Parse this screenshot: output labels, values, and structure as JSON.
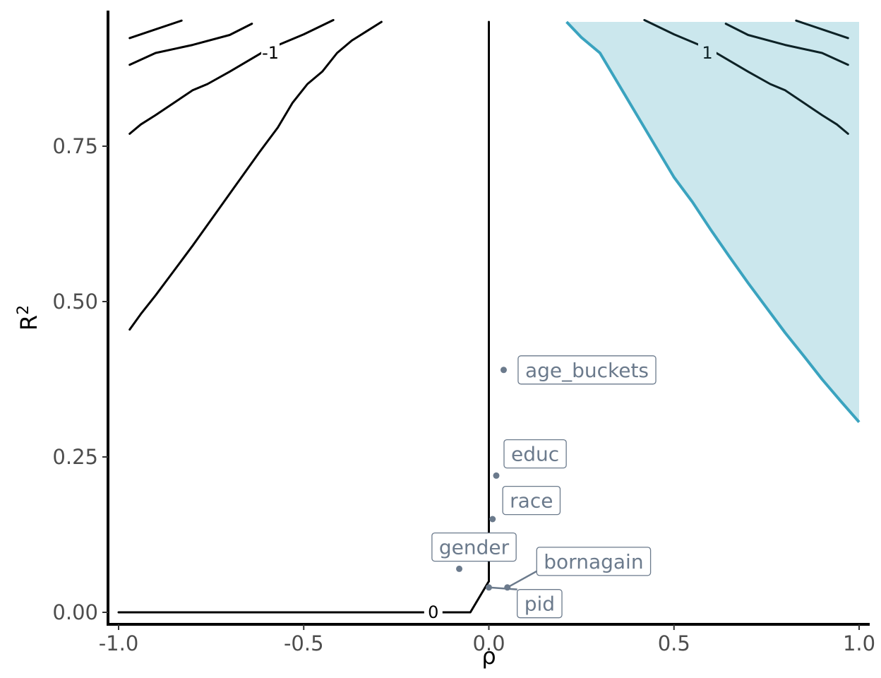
{
  "chart_data": {
    "type": "line",
    "title": "",
    "xlabel": "ρ",
    "ylabel": "R",
    "ylabel_sup": "2",
    "xlim": [
      -1.0,
      1.0
    ],
    "ylim": [
      0.0,
      0.95
    ],
    "x_ticks": [
      -1.0,
      -0.5,
      0.0,
      0.5,
      1.0
    ],
    "x_tick_labels": [
      "-1.0",
      "-0.5",
      "0.0",
      "0.5",
      "1.0"
    ],
    "y_ticks": [
      0.0,
      0.25,
      0.5,
      0.75
    ],
    "y_tick_labels": [
      "0.00",
      "0.25",
      "0.50",
      "0.75"
    ],
    "grid": false,
    "colors": {
      "contour": "#000000",
      "contour_in_region": "#0d2226",
      "region_fill": "#cbe7ed",
      "region_boundary": "#3aa3bf",
      "points": "#6b7a8c"
    },
    "shaded_region": {
      "name": "",
      "boundary": [
        [
          0.21,
          0.95
        ],
        [
          0.25,
          0.925
        ],
        [
          0.3,
          0.9
        ],
        [
          0.35,
          0.85
        ],
        [
          0.4,
          0.8
        ],
        [
          0.45,
          0.75
        ],
        [
          0.5,
          0.7
        ],
        [
          0.55,
          0.66
        ],
        [
          0.6,
          0.615
        ],
        [
          0.65,
          0.572
        ],
        [
          0.7,
          0.53
        ],
        [
          0.75,
          0.49
        ],
        [
          0.8,
          0.45
        ],
        [
          0.85,
          0.413
        ],
        [
          0.9,
          0.375
        ],
        [
          0.95,
          0.34
        ],
        [
          1.0,
          0.306
        ]
      ],
      "ceiling": 0.95
    },
    "contours": [
      {
        "label": "",
        "points": [
          [
            -0.97,
            0.924
          ],
          [
            -0.9,
            0.938
          ],
          [
            -0.83,
            0.952
          ]
        ]
      },
      {
        "label": "-1",
        "label_at": [
          -0.59,
          0.9
        ],
        "points": [
          [
            -0.97,
            0.881
          ],
          [
            -0.9,
            0.9
          ],
          [
            -0.8,
            0.913
          ],
          [
            -0.7,
            0.929
          ],
          [
            -0.64,
            0.947
          ]
        ]
      },
      {
        "label": "",
        "points": [
          [
            -0.97,
            0.77
          ],
          [
            -0.94,
            0.785
          ],
          [
            -0.9,
            0.8
          ],
          [
            -0.8,
            0.84
          ],
          [
            -0.76,
            0.85
          ],
          [
            -0.7,
            0.87
          ],
          [
            -0.6,
            0.905
          ],
          [
            -0.5,
            0.93
          ],
          [
            -0.42,
            0.953
          ]
        ]
      },
      {
        "label": "",
        "points": [
          [
            -0.97,
            0.455
          ],
          [
            -0.94,
            0.48
          ],
          [
            -0.9,
            0.51
          ],
          [
            -0.85,
            0.55
          ],
          [
            -0.8,
            0.59
          ],
          [
            -0.74,
            0.64
          ],
          [
            -0.68,
            0.69
          ],
          [
            -0.62,
            0.74
          ],
          [
            -0.57,
            0.78
          ],
          [
            -0.53,
            0.82
          ],
          [
            -0.49,
            0.85
          ],
          [
            -0.45,
            0.87
          ],
          [
            -0.41,
            0.9
          ],
          [
            -0.37,
            0.92
          ],
          [
            -0.33,
            0.935
          ],
          [
            -0.29,
            0.95
          ]
        ]
      },
      {
        "label": "",
        "points": [
          [
            0.0,
            0.95
          ],
          [
            0.0,
            0.05
          ]
        ]
      },
      {
        "label": "0",
        "label_at": [
          -0.15,
          0.0
        ],
        "points": [
          [
            0.0,
            0.05
          ],
          [
            -0.05,
            0.0
          ],
          [
            -1.0,
            0.0
          ]
        ]
      },
      {
        "label": "1",
        "label_at": [
          0.59,
          0.9
        ],
        "in_region": true,
        "points": [
          [
            0.42,
            0.953
          ],
          [
            0.5,
            0.93
          ],
          [
            0.6,
            0.905
          ],
          [
            0.7,
            0.87
          ],
          [
            0.76,
            0.85
          ],
          [
            0.8,
            0.84
          ],
          [
            0.9,
            0.8
          ],
          [
            0.94,
            0.785
          ],
          [
            0.97,
            0.77
          ]
        ]
      },
      {
        "label": "",
        "in_region": true,
        "points": [
          [
            0.64,
            0.947
          ],
          [
            0.7,
            0.929
          ],
          [
            0.8,
            0.913
          ],
          [
            0.9,
            0.9
          ],
          [
            0.97,
            0.881
          ]
        ]
      },
      {
        "label": "",
        "in_region": true,
        "points": [
          [
            0.83,
            0.952
          ],
          [
            0.9,
            0.938
          ],
          [
            0.97,
            0.924
          ]
        ]
      }
    ],
    "points": [
      {
        "name": "age_buckets",
        "x": 0.04,
        "y": 0.39,
        "label_x": 0.265,
        "label_y": 0.39
      },
      {
        "name": "educ",
        "x": 0.02,
        "y": 0.22,
        "label_x": 0.125,
        "label_y": 0.255
      },
      {
        "name": "race",
        "x": 0.01,
        "y": 0.15,
        "label_x": 0.115,
        "label_y": 0.18
      },
      {
        "name": "gender",
        "x": -0.08,
        "y": 0.07,
        "label_x": -0.04,
        "label_y": 0.105,
        "leader": false
      },
      {
        "name": "bornagain",
        "x": 0.05,
        "y": 0.04,
        "label_x": 0.283,
        "label_y": 0.082,
        "leader": true
      },
      {
        "name": "pid",
        "x": 0.0,
        "y": 0.04,
        "label_x": 0.137,
        "label_y": 0.014,
        "leader": true
      }
    ]
  }
}
